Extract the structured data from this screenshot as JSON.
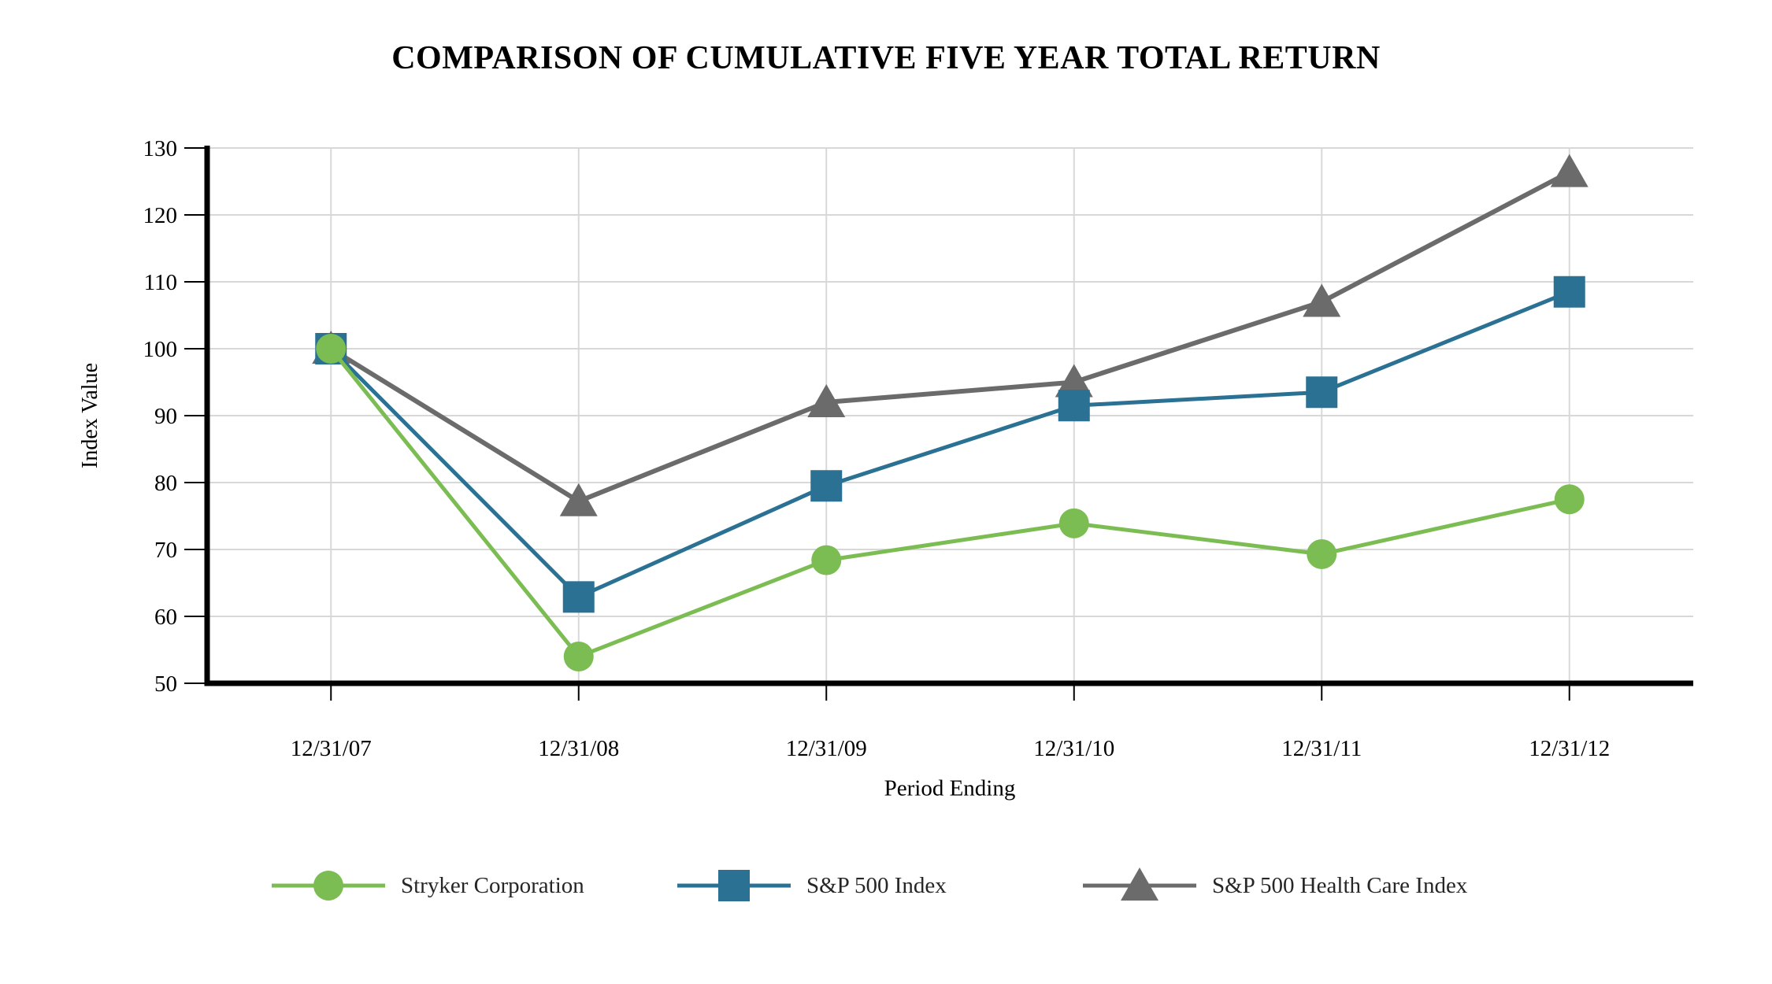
{
  "title": "COMPARISON OF CUMULATIVE FIVE YEAR TOTAL RETURN",
  "chart_data": {
    "type": "line",
    "title": "COMPARISON OF CUMULATIVE FIVE YEAR TOTAL RETURN",
    "xlabel": "Period Ending",
    "ylabel": "Index Value",
    "x_categories": [
      "12/31/07",
      "12/31/08",
      "12/31/09",
      "12/31/10",
      "12/31/11",
      "12/31/12"
    ],
    "series": [
      {
        "name": "Stryker Corporation",
        "marker": "circle",
        "color": "#7CBD53",
        "values": [
          100,
          54.0,
          68.4,
          73.9,
          69.3,
          77.5
        ]
      },
      {
        "name": "S&P 500 Index",
        "marker": "square",
        "color": "#2B7193",
        "values": [
          100,
          62.9,
          79.5,
          91.5,
          93.5,
          108.5
        ]
      },
      {
        "name": "S&P 500 Health Care Index",
        "marker": "triangle",
        "color": "#6B6B6B",
        "values": [
          100,
          77.2,
          92.0,
          95.0,
          107.0,
          126.4
        ]
      }
    ],
    "ylim": [
      50,
      130
    ],
    "ytick_step": 10,
    "yticks": [
      50,
      60,
      70,
      80,
      90,
      100,
      110,
      120,
      130
    ],
    "grid": true,
    "gridline_color": "#D8D8D8",
    "axis_color": "#000000",
    "tick_label_color": "#000000",
    "legend_position": "bottom",
    "background_color": "#FFFFFF"
  }
}
